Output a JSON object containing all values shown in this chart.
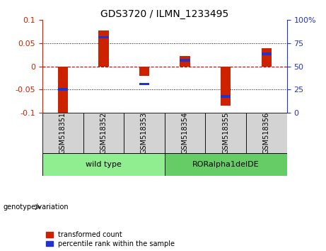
{
  "title": "GDS3720 / ILMN_1233495",
  "samples": [
    "GSM518351",
    "GSM518352",
    "GSM518353",
    "GSM518354",
    "GSM518355",
    "GSM518356"
  ],
  "red_values": [
    -0.102,
    0.078,
    -0.02,
    0.022,
    -0.085,
    0.04
  ],
  "blue_values": [
    -0.05,
    0.063,
    -0.038,
    0.013,
    -0.065,
    0.027
  ],
  "ylim": [
    -0.1,
    0.1
  ],
  "yticks_left": [
    -0.1,
    -0.05,
    0,
    0.05,
    0.1
  ],
  "yticks_right": [
    0,
    25,
    50,
    75,
    100
  ],
  "groups": [
    {
      "label": "wild type",
      "indices": [
        0,
        1,
        2
      ],
      "color": "#90EE90"
    },
    {
      "label": "RORalpha1delDE",
      "indices": [
        3,
        4,
        5
      ],
      "color": "#66CC66"
    }
  ],
  "group_label": "genotype/variation",
  "legend_red": "transformed count",
  "legend_blue": "percentile rank within the sample",
  "bar_width": 0.25,
  "red_color": "#CC2200",
  "blue_color": "#2233CC",
  "zero_line_color": "#CC0000",
  "bg_color": "#FFFFFF",
  "left_tick_color": "#CC2200",
  "right_tick_color": "#2233CC",
  "label_bg": "#D3D3D3",
  "title_fontsize": 10
}
